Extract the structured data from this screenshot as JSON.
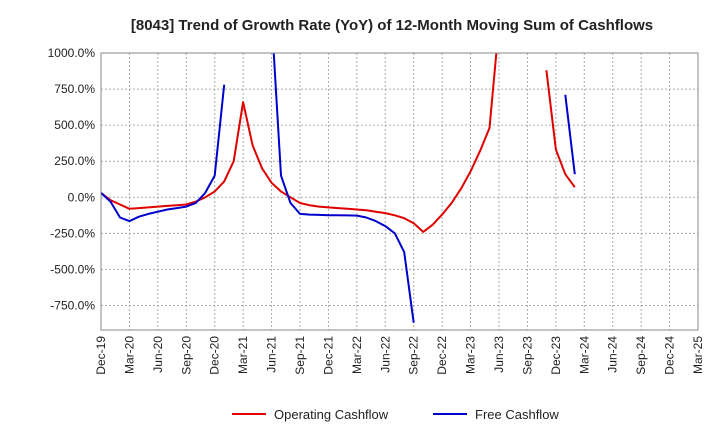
{
  "chart_data": {
    "type": "line",
    "title": "[8043]  Trend of Growth Rate (YoY) of 12-Month Moving Sum of Cashflows",
    "xlabel": "",
    "ylabel": "",
    "x_tick_labels": [
      "Dec-19",
      "Mar-20",
      "Jun-20",
      "Sep-20",
      "Dec-20",
      "Mar-21",
      "Jun-21",
      "Sep-21",
      "Dec-21",
      "Mar-22",
      "Jun-22",
      "Sep-22",
      "Dec-22",
      "Mar-23",
      "Jun-23",
      "Sep-23",
      "Dec-23",
      "Mar-24",
      "Jun-24",
      "Sep-24",
      "Dec-24",
      "Mar-25"
    ],
    "y_tick_labels": [
      "1000.0%",
      "750.0%",
      "500.0%",
      "250.0%",
      "0.0%",
      "-250.0%",
      "-500.0%",
      "-750.0%"
    ],
    "y_tick_values": [
      1000,
      750,
      500,
      250,
      0,
      -250,
      -500,
      -750
    ],
    "ylim": [
      -920,
      1000
    ],
    "x_range_months": [
      0,
      63
    ],
    "grid": true,
    "legend_position": "bottom-center",
    "series": [
      {
        "name": "Operating Cashflow",
        "color": "#e00000",
        "points": [
          [
            0,
            30
          ],
          [
            1,
            -20
          ],
          [
            2,
            -50
          ],
          [
            3,
            -80
          ],
          [
            4,
            -75
          ],
          [
            5,
            -70
          ],
          [
            6,
            -65
          ],
          [
            7,
            -60
          ],
          [
            8,
            -55
          ],
          [
            9,
            -50
          ],
          [
            10,
            -30
          ],
          [
            11,
            0
          ],
          [
            12,
            40
          ],
          [
            13,
            110
          ],
          [
            14,
            250
          ],
          [
            15,
            660
          ],
          [
            16,
            360
          ],
          [
            17,
            200
          ],
          [
            18,
            100
          ],
          [
            19,
            40
          ],
          [
            20,
            0
          ],
          [
            21,
            -40
          ],
          [
            22,
            -55
          ],
          [
            23,
            -65
          ],
          [
            24,
            -70
          ],
          [
            25,
            -75
          ],
          [
            26,
            -80
          ],
          [
            27,
            -85
          ],
          [
            28,
            -90
          ],
          [
            29,
            -100
          ],
          [
            30,
            -110
          ],
          [
            31,
            -125
          ],
          [
            32,
            -145
          ],
          [
            33,
            -180
          ],
          [
            34,
            -240
          ],
          [
            35,
            -190
          ],
          [
            36,
            -120
          ],
          [
            37,
            -40
          ],
          [
            38,
            60
          ],
          [
            39,
            180
          ],
          [
            40,
            320
          ],
          [
            41,
            480
          ],
          [
            42,
            1200
          ],
          null,
          [
            47,
            880
          ],
          [
            48,
            330
          ],
          [
            49,
            160
          ],
          [
            50,
            70
          ]
        ]
      },
      {
        "name": "Free Cashflow",
        "color": "#0000cc",
        "points": [
          [
            0,
            30
          ],
          [
            1,
            -30
          ],
          [
            2,
            -140
          ],
          [
            3,
            -165
          ],
          [
            4,
            -135
          ],
          [
            5,
            -115
          ],
          [
            6,
            -100
          ],
          [
            7,
            -85
          ],
          [
            8,
            -75
          ],
          [
            9,
            -65
          ],
          [
            10,
            -40
          ],
          [
            11,
            30
          ],
          [
            12,
            150
          ],
          [
            13,
            780
          ],
          null,
          [
            18,
            1250
          ],
          [
            19,
            150
          ],
          [
            20,
            -40
          ],
          [
            21,
            -115
          ],
          [
            22,
            -120
          ],
          [
            23,
            -122
          ],
          [
            24,
            -124
          ],
          [
            25,
            -125
          ],
          [
            26,
            -126
          ],
          [
            27,
            -127
          ],
          [
            28,
            -140
          ],
          [
            29,
            -165
          ],
          [
            30,
            -200
          ],
          [
            31,
            -250
          ],
          [
            32,
            -380
          ],
          [
            33,
            -870
          ],
          null,
          [
            49,
            710
          ],
          [
            50,
            160
          ]
        ]
      }
    ]
  }
}
